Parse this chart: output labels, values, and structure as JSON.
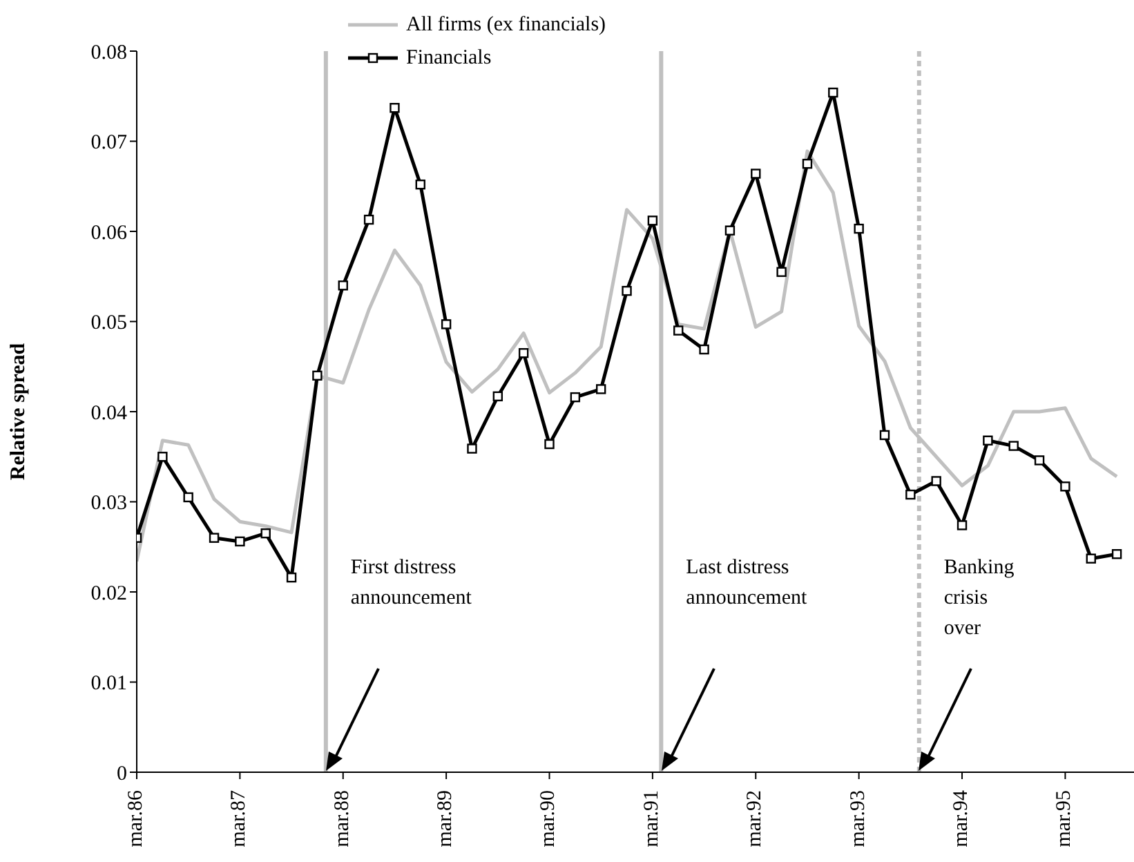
{
  "chart_data": {
    "type": "line",
    "ylabel": "Relative spread",
    "x": [
      "1986-03",
      "1986-06",
      "1986-09",
      "1986-12",
      "1987-03",
      "1987-06",
      "1987-09",
      "1987-12",
      "1988-03",
      "1988-06",
      "1988-09",
      "1988-12",
      "1989-03",
      "1989-06",
      "1989-09",
      "1989-12",
      "1990-03",
      "1990-06",
      "1990-09",
      "1990-12",
      "1991-03",
      "1991-06",
      "1991-09",
      "1991-12",
      "1992-03",
      "1992-06",
      "1992-09",
      "1992-12",
      "1993-03",
      "1993-06",
      "1993-09",
      "1993-12",
      "1994-03",
      "1994-06",
      "1994-09",
      "1994-12",
      "1995-03",
      "1995-06",
      "1995-09"
    ],
    "series": [
      {
        "name": "All firms (ex financials)",
        "color": "#c0c0c0",
        "marker": "none",
        "values": [
          0.0234,
          0.0368,
          0.0363,
          0.0303,
          0.0278,
          0.0273,
          0.0266,
          0.044,
          0.0432,
          0.0513,
          0.0579,
          0.054,
          0.0455,
          0.0422,
          0.0447,
          0.0487,
          0.0421,
          0.0443,
          0.0472,
          0.0624,
          0.0592,
          0.0497,
          0.0492,
          0.0601,
          0.0494,
          0.0511,
          0.0689,
          0.0643,
          0.0495,
          0.0456,
          0.0382,
          0.035,
          0.0318,
          0.034,
          0.04,
          0.04,
          0.0404,
          0.0348,
          0.0328
        ]
      },
      {
        "name": "Financials",
        "color": "#000000",
        "marker": "square",
        "values": [
          0.026,
          0.035,
          0.0305,
          0.026,
          0.0256,
          0.0265,
          0.0216,
          0.044,
          0.054,
          0.0613,
          0.0737,
          0.0652,
          0.0497,
          0.0359,
          0.0417,
          0.0465,
          0.0364,
          0.0416,
          0.0425,
          0.0534,
          0.0612,
          0.049,
          0.0469,
          0.0601,
          0.0664,
          0.0555,
          0.0675,
          0.0754,
          0.0603,
          0.0374,
          0.0308,
          0.0323,
          0.0274,
          0.0368,
          0.0362,
          0.0346,
          0.0317,
          0.0237,
          0.0242
        ]
      }
    ],
    "xlim": [
      "1986-03",
      "1995-11"
    ],
    "xticks": [
      {
        "value": "1986-03",
        "label": "mar.86"
      },
      {
        "value": "1987-03",
        "label": "mar.87"
      },
      {
        "value": "1988-03",
        "label": "mar.88"
      },
      {
        "value": "1989-03",
        "label": "mar.89"
      },
      {
        "value": "1990-03",
        "label": "mar.90"
      },
      {
        "value": "1991-03",
        "label": "mar.91"
      },
      {
        "value": "1992-03",
        "label": "mar.92"
      },
      {
        "value": "1993-03",
        "label": "mar.93"
      },
      {
        "value": "1994-03",
        "label": "mar.94"
      },
      {
        "value": "1995-03",
        "label": "mar.95"
      }
    ],
    "ylim": [
      0,
      0.08
    ],
    "yticks": [
      0,
      0.01,
      0.02,
      0.03,
      0.04,
      0.05,
      0.06,
      0.07,
      0.08
    ],
    "ref_lines": [
      {
        "axis": "x",
        "value": "1988-01",
        "label": "First distress announcement",
        "color": "#c0c0c0",
        "line_style": "solid"
      },
      {
        "axis": "x",
        "value": "1991-04",
        "label": "Last distress announcement",
        "color": "#c0c0c0",
        "line_style": "solid"
      },
      {
        "axis": "x",
        "value": "1993-10",
        "label": "Banking crisis over",
        "color": "#c0c0c0",
        "line_style": "dotted"
      }
    ],
    "grid": false,
    "legend": "top"
  }
}
